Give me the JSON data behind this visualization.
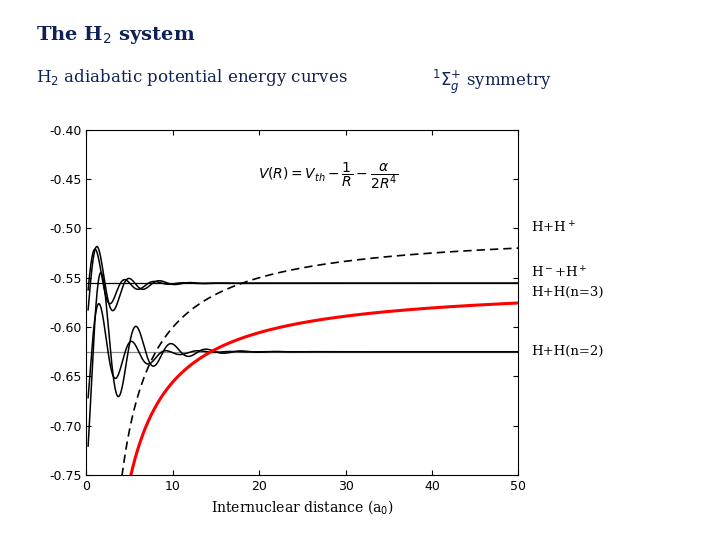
{
  "title": "The H$_2$ system",
  "subtitle_left": "H$_2$ adiabatic potential energy curves",
  "subtitle_right": "$^{1}\\Sigma_{g}^{+}$ symmetry",
  "xlabel": "Internuclear distance (a$_0$)",
  "xlim": [
    0,
    50
  ],
  "ylim": [
    -0.75,
    -0.4
  ],
  "yticks": [
    -0.75,
    -0.7,
    -0.65,
    -0.6,
    -0.55,
    -0.5,
    -0.45,
    -0.4
  ],
  "xticks": [
    0,
    10,
    20,
    30,
    40,
    50
  ],
  "bg_color": "#ffffff",
  "title_color": "#0d2157",
  "subtitle_color": "#0d2157",
  "asymptote_HpHplus": -0.5,
  "asymptote_HHn3": -0.5556,
  "asymptote_HHn2": -0.625,
  "label_HpHplus": "H+H$^+$",
  "label_HminusHplus": "H$^-$+H$^+$",
  "label_HHn3": "H+H(n=3)",
  "label_HHn2": "H+H(n=2)"
}
